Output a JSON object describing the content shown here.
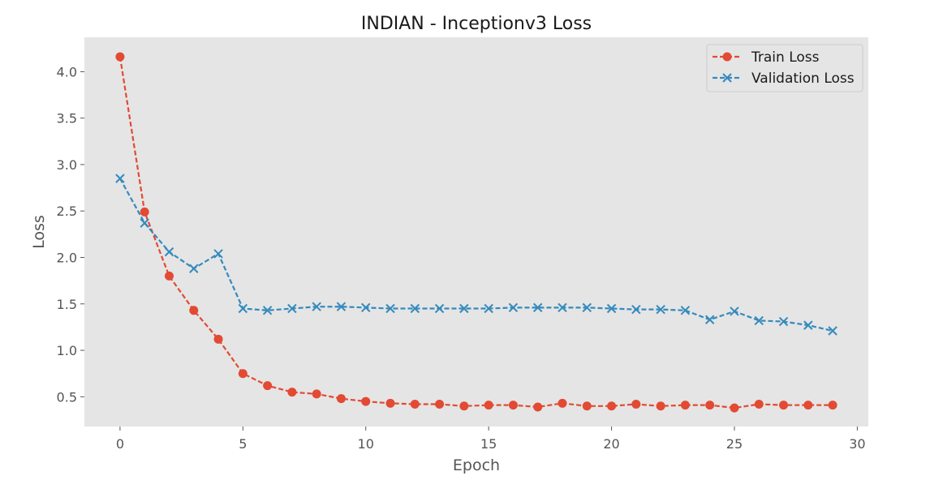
{
  "chart_data": {
    "type": "line",
    "title": "INDIAN - Inceptionv3 Loss",
    "xlabel": "Epoch",
    "ylabel": "Loss",
    "xlim": [
      -1.45,
      30.45
    ],
    "ylim": [
      0.18,
      4.37
    ],
    "xticks": [
      0,
      5,
      10,
      15,
      20,
      25,
      30
    ],
    "yticks": [
      0.5,
      1.0,
      1.5,
      2.0,
      2.5,
      3.0,
      3.5,
      4.0
    ],
    "ytick_labels": [
      "0.5",
      "1.0",
      "1.5",
      "2.0",
      "2.5",
      "3.0",
      "3.5",
      "4.0"
    ],
    "grid": false,
    "legend_position": "top-right",
    "x": [
      0,
      1,
      2,
      3,
      4,
      5,
      6,
      7,
      8,
      9,
      10,
      11,
      12,
      13,
      14,
      15,
      16,
      17,
      18,
      19,
      20,
      21,
      22,
      23,
      24,
      25,
      26,
      27,
      28,
      29
    ],
    "series": [
      {
        "name": "Train Loss",
        "color": "#e24a33",
        "marker": "circle",
        "values": [
          4.16,
          2.49,
          1.8,
          1.43,
          1.12,
          0.75,
          0.62,
          0.55,
          0.53,
          0.48,
          0.45,
          0.43,
          0.42,
          0.42,
          0.4,
          0.41,
          0.41,
          0.39,
          0.43,
          0.4,
          0.4,
          0.42,
          0.4,
          0.41,
          0.41,
          0.38,
          0.42,
          0.41,
          0.41,
          0.41
        ]
      },
      {
        "name": "Validation Loss",
        "color": "#348abd",
        "marker": "x",
        "values": [
          2.85,
          2.37,
          2.06,
          1.88,
          2.04,
          1.45,
          1.43,
          1.45,
          1.47,
          1.47,
          1.46,
          1.45,
          1.45,
          1.45,
          1.45,
          1.45,
          1.46,
          1.46,
          1.46,
          1.46,
          1.45,
          1.44,
          1.44,
          1.43,
          1.33,
          1.42,
          1.32,
          1.31,
          1.27,
          1.21
        ]
      }
    ]
  }
}
